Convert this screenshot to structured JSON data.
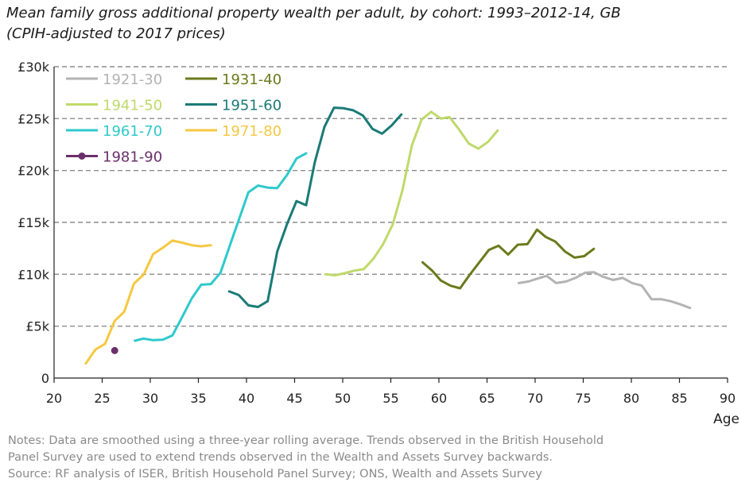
{
  "title_line1": "Mean family gross additional property wealth per adult, by cohort: 1993–2012-14, GB",
  "title_line2": "(CPIH-adjusted to 2017 prices)",
  "notes": {
    "line1": "Notes: Data are smoothed using a three-year rolling average. Trends observed in the British Household",
    "line2": "Panel Survey are used to extend trends observed in the Wealth and Assets Survey backwards.",
    "line3": "Source: RF analysis of ISER, British Household Panel Survey; ONS, Wealth and Assets Survey"
  },
  "chart_data": {
    "type": "line",
    "xlabel": "Age",
    "ylabel": "",
    "xlim": [
      20,
      90
    ],
    "ylim": [
      0,
      30000
    ],
    "x_ticks": [
      20,
      25,
      30,
      35,
      40,
      45,
      50,
      55,
      60,
      65,
      70,
      75,
      80,
      85,
      90
    ],
    "y_ticks": [
      {
        "value": 0,
        "label": "0"
      },
      {
        "value": 5000,
        "label": "£5k"
      },
      {
        "value": 10000,
        "label": "£10k"
      },
      {
        "value": 15000,
        "label": "£15k"
      },
      {
        "value": 20000,
        "label": "£20k"
      },
      {
        "value": 25000,
        "label": "£25k"
      },
      {
        "value": 30000,
        "label": "£30k"
      }
    ],
    "grid": "horizontal-dashed",
    "legend_position": "top-left",
    "series": [
      {
        "name": "1921-30",
        "color": "#b3b3b3",
        "points": [
          [
            68.3,
            9150
          ],
          [
            69.3,
            9300
          ],
          [
            70.3,
            9600
          ],
          [
            71.2,
            9850
          ],
          [
            72.2,
            9150
          ],
          [
            73.2,
            9300
          ],
          [
            74.2,
            9650
          ],
          [
            75.2,
            10150
          ],
          [
            76.1,
            10200
          ],
          [
            77.1,
            9750
          ],
          [
            78.1,
            9450
          ],
          [
            79.1,
            9650
          ],
          [
            80.1,
            9150
          ],
          [
            81.1,
            8900
          ],
          [
            82.1,
            7600
          ],
          [
            83.1,
            7600
          ],
          [
            84.1,
            7400
          ],
          [
            85.1,
            7100
          ],
          [
            86.1,
            6750
          ]
        ]
      },
      {
        "name": "1931-40",
        "color": "#6b7a1c",
        "points": [
          [
            58.3,
            11150
          ],
          [
            59.3,
            10350
          ],
          [
            60.2,
            9400
          ],
          [
            61.2,
            8900
          ],
          [
            62.2,
            8650
          ],
          [
            63.2,
            9950
          ],
          [
            64.2,
            11150
          ],
          [
            65.2,
            12350
          ],
          [
            66.2,
            12750
          ],
          [
            67.2,
            11900
          ],
          [
            68.2,
            12850
          ],
          [
            69.2,
            12900
          ],
          [
            70.2,
            14300
          ],
          [
            71.1,
            13600
          ],
          [
            72.1,
            13150
          ],
          [
            73.1,
            12200
          ],
          [
            74.1,
            11600
          ],
          [
            75.1,
            11750
          ],
          [
            76.1,
            12450
          ]
        ]
      },
      {
        "name": "1941-50",
        "color": "#bfd96a",
        "points": [
          [
            48.2,
            10000
          ],
          [
            49.2,
            9900
          ],
          [
            50.2,
            10100
          ],
          [
            51.2,
            10350
          ],
          [
            52.2,
            10500
          ],
          [
            53.2,
            11500
          ],
          [
            54.2,
            12900
          ],
          [
            55.2,
            14800
          ],
          [
            56.2,
            18050
          ],
          [
            57.2,
            22450
          ],
          [
            58.2,
            24900
          ],
          [
            59.2,
            25650
          ],
          [
            60.2,
            25000
          ],
          [
            61.1,
            25150
          ],
          [
            62.1,
            23950
          ],
          [
            63.1,
            22600
          ],
          [
            64.1,
            22100
          ],
          [
            65.1,
            22750
          ],
          [
            66.1,
            23850
          ]
        ]
      },
      {
        "name": "1951-60",
        "color": "#1a7a76",
        "points": [
          [
            38.2,
            8350
          ],
          [
            39.2,
            8000
          ],
          [
            40.2,
            7000
          ],
          [
            41.2,
            6850
          ],
          [
            42.2,
            7400
          ],
          [
            43.2,
            12200
          ],
          [
            44.2,
            14800
          ],
          [
            45.2,
            17050
          ],
          [
            46.2,
            16650
          ],
          [
            47.1,
            20800
          ],
          [
            48.1,
            24200
          ],
          [
            49.1,
            26050
          ],
          [
            50.1,
            26000
          ],
          [
            51.1,
            25800
          ],
          [
            52.1,
            25300
          ],
          [
            53.1,
            24000
          ],
          [
            54.1,
            23550
          ],
          [
            55.1,
            24350
          ],
          [
            56.1,
            25400
          ]
        ]
      },
      {
        "name": "1961-70",
        "color": "#2ec9cc",
        "points": [
          [
            28.4,
            3600
          ],
          [
            29.3,
            3800
          ],
          [
            30.3,
            3650
          ],
          [
            31.3,
            3700
          ],
          [
            32.3,
            4100
          ],
          [
            33.3,
            5850
          ],
          [
            34.3,
            7650
          ],
          [
            35.3,
            9000
          ],
          [
            36.3,
            9050
          ],
          [
            37.3,
            10150
          ],
          [
            38.3,
            12850
          ],
          [
            39.3,
            15500
          ],
          [
            40.2,
            17900
          ],
          [
            41.2,
            18550
          ],
          [
            42.2,
            18350
          ],
          [
            43.2,
            18300
          ],
          [
            44.2,
            19550
          ],
          [
            45.2,
            21150
          ],
          [
            46.2,
            21650
          ]
        ]
      },
      {
        "name": "1971-80",
        "color": "#f5c842",
        "points": [
          [
            23.3,
            1400
          ],
          [
            24.3,
            2750
          ],
          [
            25.3,
            3300
          ],
          [
            26.3,
            5500
          ],
          [
            27.3,
            6400
          ],
          [
            28.3,
            9100
          ],
          [
            29.3,
            9950
          ],
          [
            30.3,
            11950
          ],
          [
            31.3,
            12550
          ],
          [
            32.3,
            13250
          ],
          [
            33.3,
            13050
          ],
          [
            34.3,
            12800
          ],
          [
            35.3,
            12700
          ],
          [
            36.3,
            12800
          ]
        ]
      },
      {
        "name": "1981-90",
        "color": "#6b2f6b",
        "marker": true,
        "points": [
          [
            26.3,
            2650
          ]
        ]
      }
    ]
  }
}
